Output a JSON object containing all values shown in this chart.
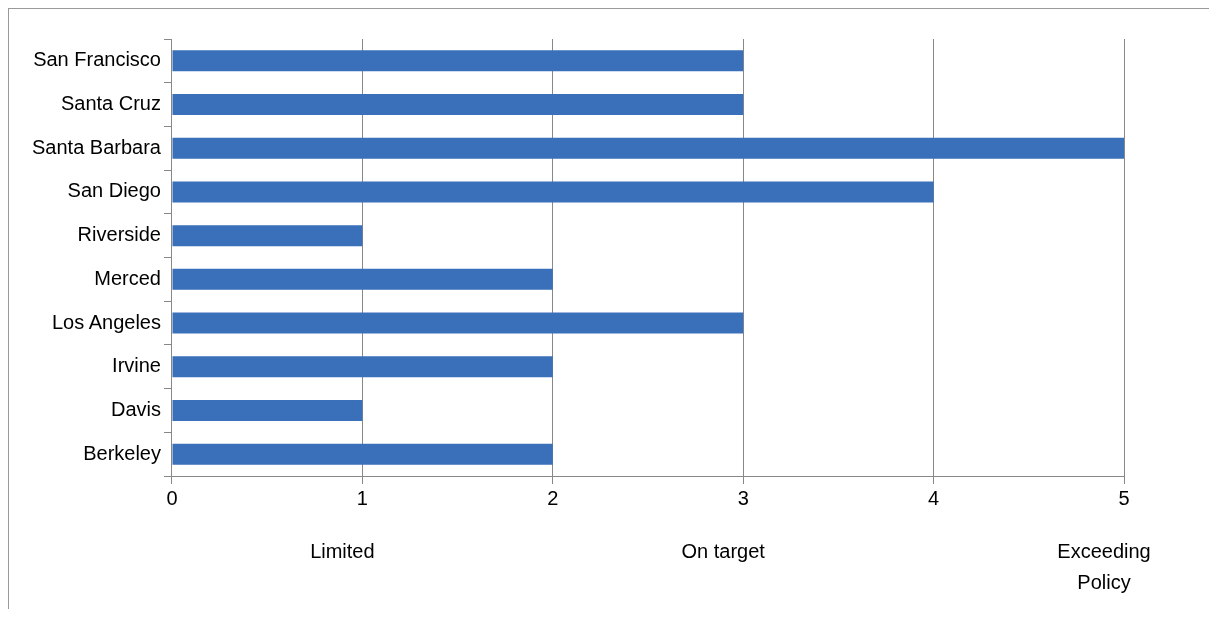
{
  "chart_data": {
    "type": "bar",
    "orientation": "horizontal",
    "categories": [
      "San Francisco",
      "Santa Cruz",
      "Santa Barbara",
      "San Diego",
      "Riverside",
      "Merced",
      "Los Angeles",
      "Irvine",
      "Davis",
      "Berkeley"
    ],
    "values": [
      3,
      3,
      5,
      4,
      1,
      2,
      3,
      2,
      1,
      2
    ],
    "color": "#3a6fba",
    "xlim": [
      0,
      5
    ],
    "xticks": [
      0,
      1,
      2,
      3,
      4,
      5
    ],
    "grid": "x",
    "legend": false,
    "annotations": [
      "Limited",
      "On target",
      "Exceeding Policy"
    ]
  }
}
